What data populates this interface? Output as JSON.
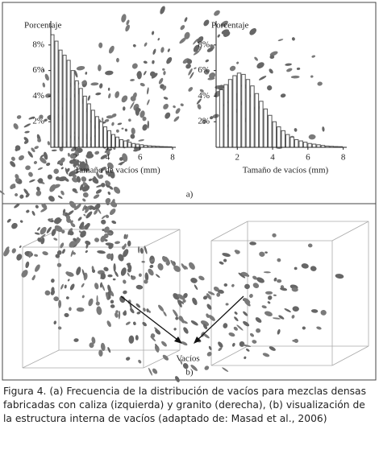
{
  "chart_data": [
    {
      "type": "histogram",
      "ylabel": "Porcentaje",
      "xlabel": "Tamaño de vacíos (mm)",
      "color": "#555555",
      "bins": [
        0.5,
        0.75,
        1.0,
        1.25,
        1.5,
        1.75,
        2.0,
        2.25,
        2.5,
        2.75,
        3.0,
        3.25,
        3.5,
        3.75,
        4.0,
        4.25,
        4.5,
        4.75,
        5.0,
        5.25,
        5.5,
        5.75,
        6.0,
        6.25,
        6.5,
        6.75,
        7.0,
        7.25,
        7.5,
        7.75,
        8.0
      ],
      "values": [
        8.8,
        8.3,
        7.6,
        7.2,
        6.8,
        6.0,
        5.2,
        4.6,
        4.0,
        3.4,
        2.9,
        2.4,
        2.0,
        1.6,
        1.3,
        1.0,
        0.8,
        0.6,
        0.5,
        0.4,
        0.3,
        0.25,
        0.2,
        0.15,
        0.12,
        0.1,
        0.08,
        0.06,
        0.05,
        0.04
      ],
      "xlim": [
        0.5,
        8.2
      ],
      "xticks": [
        2,
        4,
        6,
        8
      ],
      "ylim": [
        0,
        9.5
      ],
      "yticks": [
        {
          "value": 2,
          "label": "2%"
        },
        {
          "value": 4,
          "label": "4%"
        },
        {
          "value": 6,
          "label": "6%"
        },
        {
          "value": 8,
          "label": "8%"
        }
      ]
    },
    {
      "type": "histogram",
      "ylabel": "Porcentaje",
      "xlabel": "Tamaño de vacíos (mm)",
      "color": "#555555",
      "bins": [
        1.0,
        1.25,
        1.5,
        1.75,
        2.0,
        2.25,
        2.5,
        2.75,
        3.0,
        3.25,
        3.5,
        3.75,
        4.0,
        4.25,
        4.5,
        4.75,
        5.0,
        5.25,
        5.5,
        5.75,
        6.0,
        6.25,
        6.5,
        6.75,
        7.0,
        7.25,
        7.5,
        7.75,
        8.0
      ],
      "values": [
        4.5,
        4.9,
        5.3,
        5.6,
        5.8,
        5.7,
        5.3,
        4.8,
        4.2,
        3.6,
        3.0,
        2.5,
        2.0,
        1.6,
        1.3,
        1.0,
        0.8,
        0.6,
        0.5,
        0.4,
        0.3,
        0.25,
        0.2,
        0.15,
        0.1,
        0.08,
        0.06,
        0.05
      ],
      "xlim": [
        0.8,
        8.2
      ],
      "xticks": [
        2,
        4,
        6,
        8
      ],
      "ylim": [
        0,
        9.5
      ],
      "yticks": [
        {
          "value": 2,
          "label": "2%"
        },
        {
          "value": 4,
          "label": "4%"
        },
        {
          "value": 6,
          "label": "6%"
        },
        {
          "value": 8,
          "label": "8%"
        }
      ]
    }
  ],
  "panel_a_label": "a)",
  "panel_b": {
    "label": "b)",
    "annotation": "Vacíos"
  },
  "caption": "Figura 4. (a) Frecuencia de la distribución de vacíos para mezclas densas fabricadas con caliza (izquierda) y granito (derecha), (b) visualización de la estructura interna de vacíos (adaptado de: Masad et al., 2006)"
}
